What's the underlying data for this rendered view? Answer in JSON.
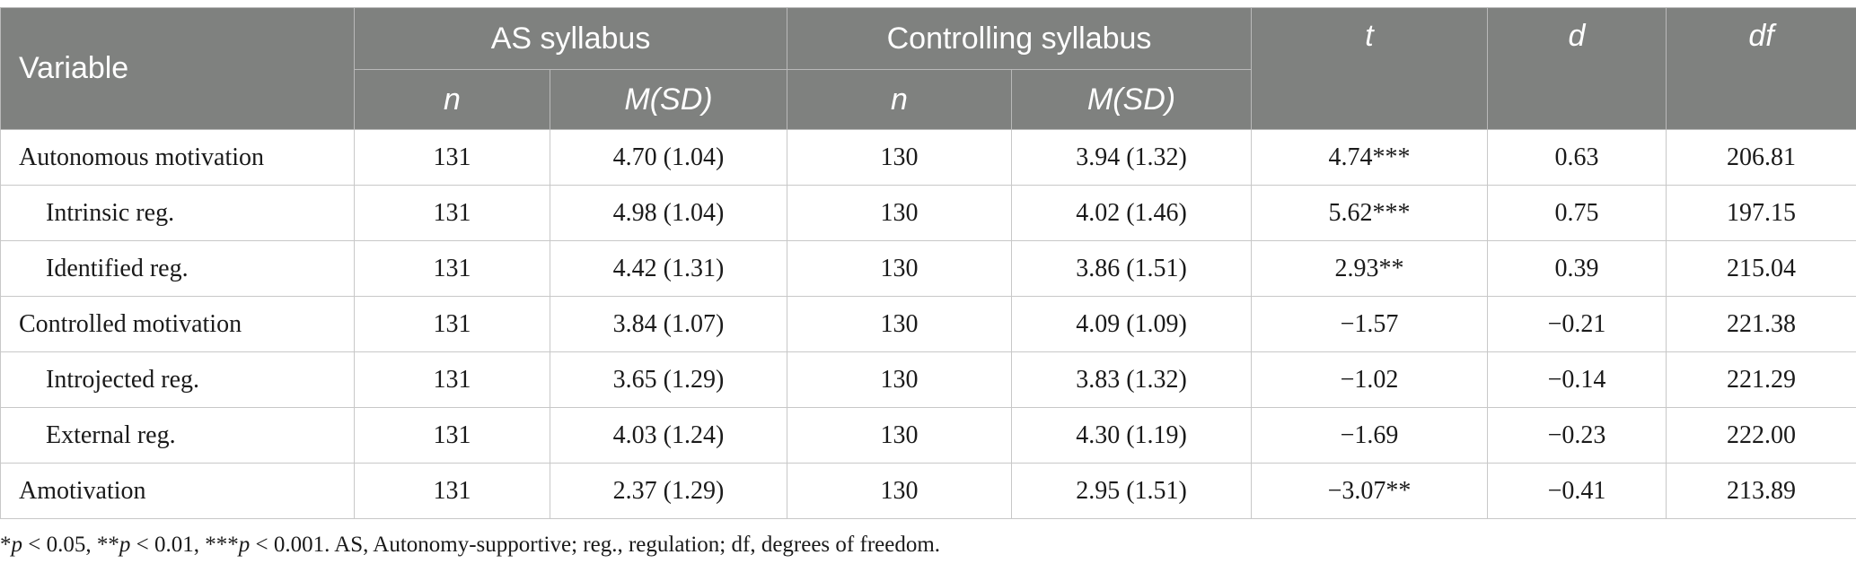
{
  "header": {
    "variable": "Variable",
    "group1": "AS syllabus",
    "group2": "Controlling syllabus",
    "t": "t",
    "d": "d",
    "df": "df",
    "n1": "n",
    "msd1": "M(SD)",
    "n2": "n",
    "msd2": "M(SD)"
  },
  "rows": [
    {
      "label": "Autonomous motivation",
      "as_n": "131",
      "as_msd": "4.70 (1.04)",
      "ctrl_n": "130",
      "ctrl_msd": "3.94 (1.32)",
      "t": "4.74***",
      "d": "0.63",
      "df": "206.81"
    },
    {
      "label": "Intrinsic reg.",
      "as_n": "131",
      "as_msd": "4.98 (1.04)",
      "ctrl_n": "130",
      "ctrl_msd": "4.02 (1.46)",
      "t": "5.62***",
      "d": "0.75",
      "df": "197.15"
    },
    {
      "label": "Identified reg.",
      "as_n": "131",
      "as_msd": "4.42 (1.31)",
      "ctrl_n": "130",
      "ctrl_msd": "3.86 (1.51)",
      "t": "2.93**",
      "d": "0.39",
      "df": "215.04"
    },
    {
      "label": "Controlled motivation",
      "as_n": "131",
      "as_msd": "3.84 (1.07)",
      "ctrl_n": "130",
      "ctrl_msd": "4.09 (1.09)",
      "t": "−1.57",
      "d": "−0.21",
      "df": "221.38"
    },
    {
      "label": "Introjected reg.",
      "as_n": "131",
      "as_msd": "3.65 (1.29)",
      "ctrl_n": "130",
      "ctrl_msd": "3.83 (1.32)",
      "t": "−1.02",
      "d": "−0.14",
      "df": "221.29"
    },
    {
      "label": "External reg.",
      "as_n": "131",
      "as_msd": "4.03 (1.24)",
      "ctrl_n": "130",
      "ctrl_msd": "4.30 (1.19)",
      "t": "−1.69",
      "d": "−0.23",
      "df": "222.00"
    },
    {
      "label": "Amotivation",
      "as_n": "131",
      "as_msd": "2.37 (1.29)",
      "ctrl_n": "130",
      "ctrl_msd": "2.95 (1.51)",
      "t": "−3.07**",
      "d": "−0.41",
      "df": "213.89"
    }
  ],
  "footnote": {
    "s1": "*",
    "p1": "p",
    "s2": " < 0.05, **",
    "p2": "p",
    "s3": " < 0.01, ***",
    "p3": "p",
    "s4": " < 0.001. AS, Autonomy-supportive; reg., regulation; df, degrees of freedom."
  }
}
